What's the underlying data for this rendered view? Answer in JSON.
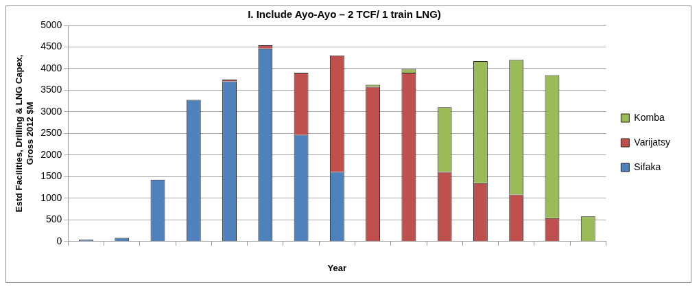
{
  "chart_data": {
    "type": "bar",
    "title": "I. Include Ayo-Ayo – 2 TCF/ 1 train LNG)",
    "xlabel": "Year",
    "ylabel": "Estd Facilities, Drilling & LNG Capex,\nGross 2012 $M",
    "categories": [
      null,
      null,
      null,
      null,
      null,
      null,
      null,
      null,
      null,
      null,
      null,
      null,
      null,
      null,
      null
    ],
    "stacked": true,
    "legend": "right",
    "grid": "y",
    "ylim": [
      0,
      5000
    ],
    "yticks": [
      0,
      500,
      1000,
      1500,
      2000,
      2500,
      3000,
      3500,
      4000,
      4500,
      5000
    ],
    "series": [
      {
        "name": "Sifaka",
        "color": "#4f81bd",
        "values": [
          40,
          85,
          1430,
          3275,
          3705,
          4465,
          2465,
          1610,
          0,
          0,
          0,
          0,
          0,
          0,
          0
        ]
      },
      {
        "name": "Varijatsy",
        "color": "#c0504d",
        "values": [
          0,
          0,
          0,
          0,
          40,
          75,
          1440,
          2695,
          3580,
          3905,
          1610,
          1350,
          1085,
          540,
          0
        ]
      },
      {
        "name": "Komba",
        "color": "#9bbb59",
        "values": [
          0,
          0,
          0,
          0,
          0,
          0,
          0,
          0,
          45,
          85,
          1495,
          2825,
          3115,
          3310,
          580
        ]
      }
    ]
  }
}
